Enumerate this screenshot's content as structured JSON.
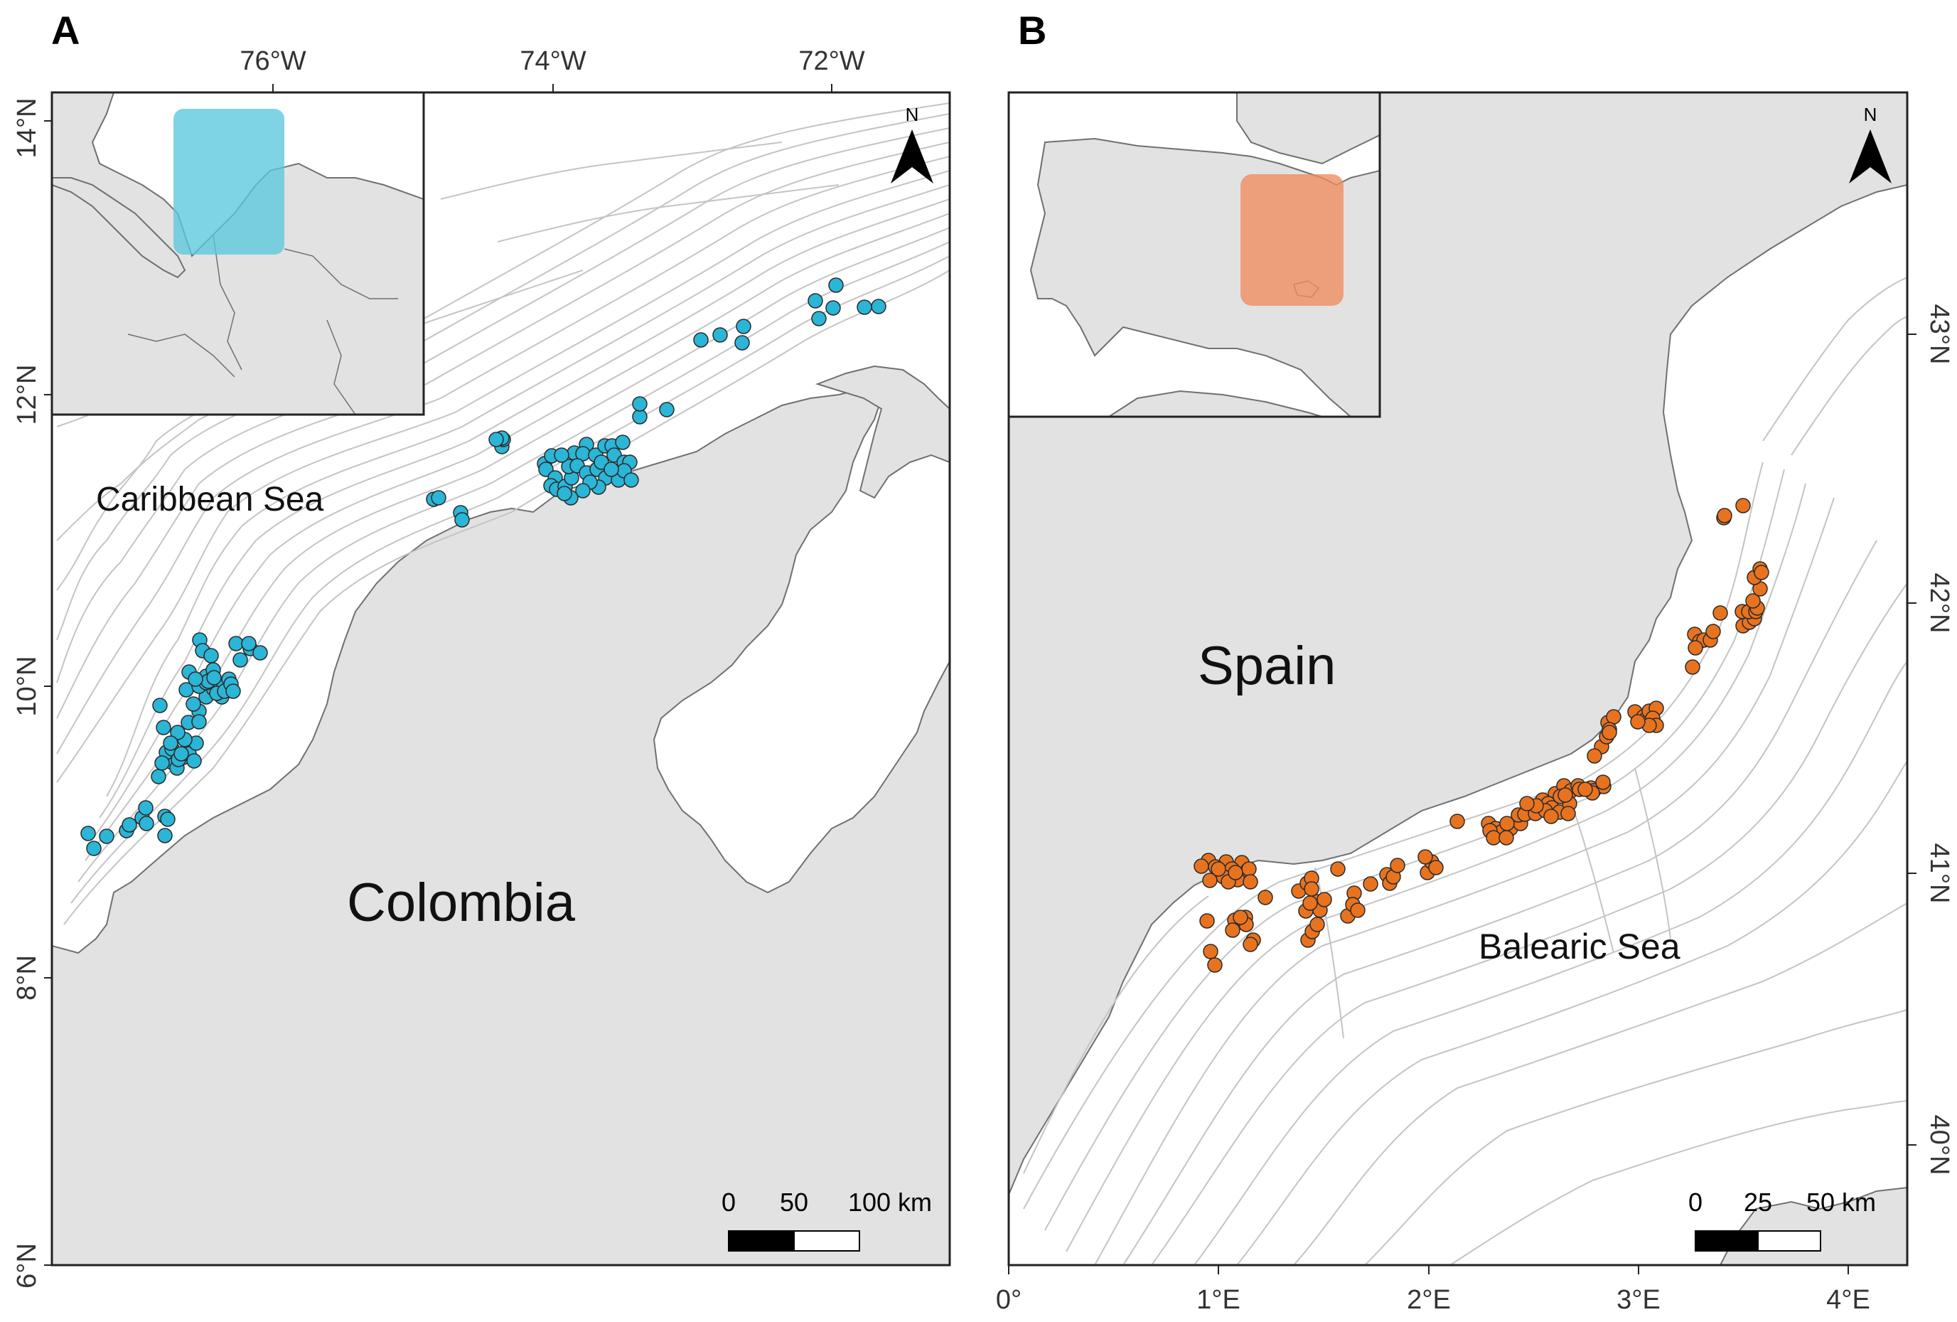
{
  "panel_a": {
    "letter": "A",
    "top_ticks": [
      "76°W",
      "74°W",
      "72°W"
    ],
    "left_ticks": [
      "14°N",
      "12°N",
      "10°N",
      "8°N",
      "6°N"
    ],
    "sea_label": "Caribbean Sea",
    "land_label": "Colombia",
    "north_label": "N",
    "scalebar": {
      "labels": [
        "0",
        "50",
        "100 km"
      ]
    },
    "inset_highlight_color": "#5bc8dc",
    "point_color": "#2bb5d6"
  },
  "panel_b": {
    "letter": "B",
    "bottom_ticks": [
      "0°",
      "1°E",
      "2°E",
      "3°E",
      "4°E"
    ],
    "right_ticks": [
      "43°N",
      "42°N",
      "41°N",
      "40°N"
    ],
    "land_label": "Spain",
    "sea_label": "Balearic Sea",
    "north_label": "N",
    "scalebar": {
      "labels": [
        "0",
        "25",
        "50 km"
      ]
    },
    "inset_highlight_color": "#f08a5d",
    "point_color": "#e8731f"
  },
  "colors": {
    "land": "#e2e2e2",
    "sea": "#ffffff",
    "contour": "#c4c4c4",
    "coastline": "#707070",
    "frame": "#222222"
  }
}
